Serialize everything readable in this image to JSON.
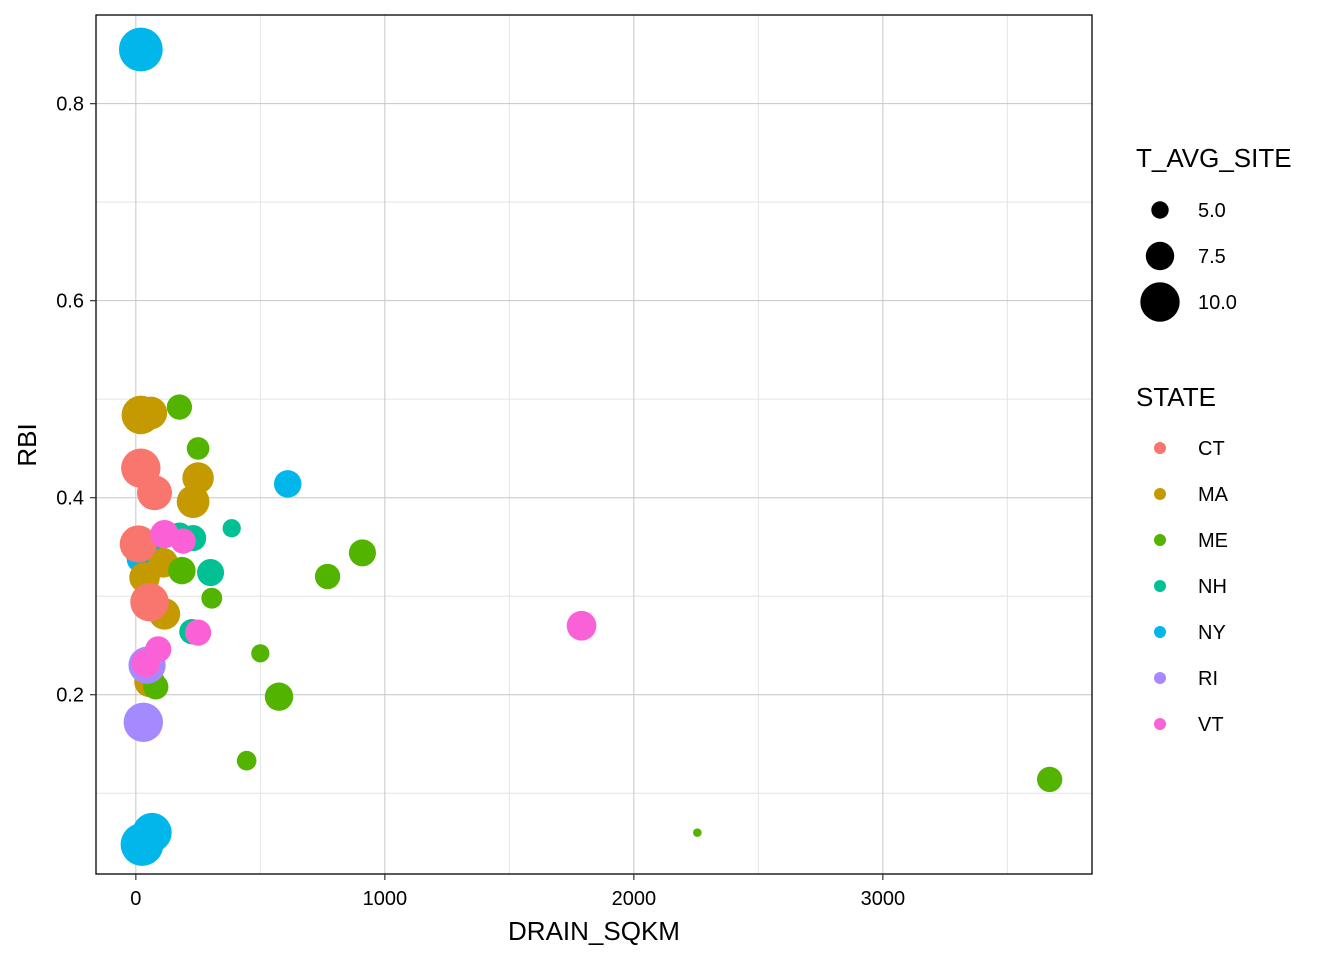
{
  "chart_data": {
    "type": "scatter",
    "title": "",
    "xlabel": "DRAIN_SQKM",
    "ylabel": "RBI",
    "xlim": [
      -160,
      3840
    ],
    "ylim": [
      0.018,
      0.89
    ],
    "x_ticks": [
      0,
      1000,
      2000,
      3000
    ],
    "x_tick_labels": [
      "0",
      "1000",
      "2000",
      "3000"
    ],
    "y_ticks": [
      0.2,
      0.4,
      0.6,
      0.8
    ],
    "y_tick_labels": [
      "0.2",
      "0.4",
      "0.6",
      "0.8"
    ],
    "x_minor_ticks": [
      500,
      1500,
      2500,
      3500
    ],
    "y_minor_ticks": [
      0.1,
      0.3,
      0.5,
      0.7
    ],
    "grid": true,
    "legend_position": "right",
    "size_legend": {
      "title": "T_AVG_SITE",
      "entries": [
        {
          "label": "5.0",
          "value": 5.0
        },
        {
          "label": "7.5",
          "value": 7.5
        },
        {
          "label": "10.0",
          "value": 10.0
        }
      ]
    },
    "color_legend": {
      "title": "STATE",
      "entries": [
        {
          "label": "CT",
          "color": "#F8766D"
        },
        {
          "label": "MA",
          "color": "#C49A00"
        },
        {
          "label": "ME",
          "color": "#53B400"
        },
        {
          "label": "NH",
          "color": "#00C094"
        },
        {
          "label": "NY",
          "color": "#00B6EB"
        },
        {
          "label": "RI",
          "color": "#A58AFF"
        },
        {
          "label": "VT",
          "color": "#FB61D7"
        }
      ]
    },
    "points": [
      {
        "x": 20,
        "y": 0.855,
        "size": 11.0,
        "state": "NY"
      },
      {
        "x": 610,
        "y": 0.414,
        "size": 7.3,
        "state": "NY"
      },
      {
        "x": 20,
        "y": 0.338,
        "size": 7.5,
        "state": "NY"
      },
      {
        "x": 80,
        "y": 0.338,
        "size": 8.0,
        "state": "NY"
      },
      {
        "x": 65,
        "y": 0.06,
        "size": 10.0,
        "state": "NY"
      },
      {
        "x": 25,
        "y": 0.048,
        "size": 10.8,
        "state": "NY"
      },
      {
        "x": 20,
        "y": 0.484,
        "size": 9.8,
        "state": "MA"
      },
      {
        "x": 60,
        "y": 0.486,
        "size": 8.5,
        "state": "MA"
      },
      {
        "x": 250,
        "y": 0.42,
        "size": 8.2,
        "state": "MA"
      },
      {
        "x": 230,
        "y": 0.396,
        "size": 8.5,
        "state": "MA"
      },
      {
        "x": 110,
        "y": 0.334,
        "size": 7.8,
        "state": "MA"
      },
      {
        "x": 35,
        "y": 0.319,
        "size": 8.0,
        "state": "MA"
      },
      {
        "x": 115,
        "y": 0.282,
        "size": 8.2,
        "state": "MA"
      },
      {
        "x": 55,
        "y": 0.213,
        "size": 8.0,
        "state": "MA"
      },
      {
        "x": 175,
        "y": 0.492,
        "size": 6.8,
        "state": "ME"
      },
      {
        "x": 250,
        "y": 0.45,
        "size": 6.2,
        "state": "ME"
      },
      {
        "x": 185,
        "y": 0.326,
        "size": 7.3,
        "state": "ME"
      },
      {
        "x": 305,
        "y": 0.298,
        "size": 5.8,
        "state": "ME"
      },
      {
        "x": 500,
        "y": 0.242,
        "size": 5.2,
        "state": "ME"
      },
      {
        "x": 80,
        "y": 0.208,
        "size": 6.8,
        "state": "ME"
      },
      {
        "x": 575,
        "y": 0.198,
        "size": 7.5,
        "state": "ME"
      },
      {
        "x": 445,
        "y": 0.133,
        "size": 5.5,
        "state": "ME"
      },
      {
        "x": 770,
        "y": 0.32,
        "size": 6.8,
        "state": "ME"
      },
      {
        "x": 910,
        "y": 0.344,
        "size": 7.2,
        "state": "ME"
      },
      {
        "x": 2255,
        "y": 0.06,
        "size": 3.0,
        "state": "ME"
      },
      {
        "x": 3670,
        "y": 0.114,
        "size": 6.8,
        "state": "ME"
      },
      {
        "x": 175,
        "y": 0.362,
        "size": 6.8,
        "state": "NH"
      },
      {
        "x": 230,
        "y": 0.359,
        "size": 7.0,
        "state": "NH"
      },
      {
        "x": 385,
        "y": 0.369,
        "size": 5.2,
        "state": "NH"
      },
      {
        "x": 300,
        "y": 0.324,
        "size": 7.2,
        "state": "NH"
      },
      {
        "x": 225,
        "y": 0.264,
        "size": 6.8,
        "state": "NH"
      },
      {
        "x": 20,
        "y": 0.43,
        "size": 10.0,
        "state": "CT"
      },
      {
        "x": 75,
        "y": 0.405,
        "size": 9.0,
        "state": "CT"
      },
      {
        "x": 10,
        "y": 0.353,
        "size": 9.5,
        "state": "CT"
      },
      {
        "x": 55,
        "y": 0.294,
        "size": 9.8,
        "state": "CT"
      },
      {
        "x": 45,
        "y": 0.23,
        "size": 9.5,
        "state": "RI"
      },
      {
        "x": 30,
        "y": 0.172,
        "size": 10.0,
        "state": "RI"
      },
      {
        "x": 115,
        "y": 0.363,
        "size": 7.5,
        "state": "VT"
      },
      {
        "x": 190,
        "y": 0.356,
        "size": 6.8,
        "state": "VT"
      },
      {
        "x": 90,
        "y": 0.246,
        "size": 7.0,
        "state": "VT"
      },
      {
        "x": 250,
        "y": 0.263,
        "size": 7.0,
        "state": "VT"
      },
      {
        "x": 40,
        "y": 0.232,
        "size": 7.5,
        "state": "VT"
      },
      {
        "x": 1790,
        "y": 0.27,
        "size": 7.8,
        "state": "VT"
      }
    ]
  }
}
